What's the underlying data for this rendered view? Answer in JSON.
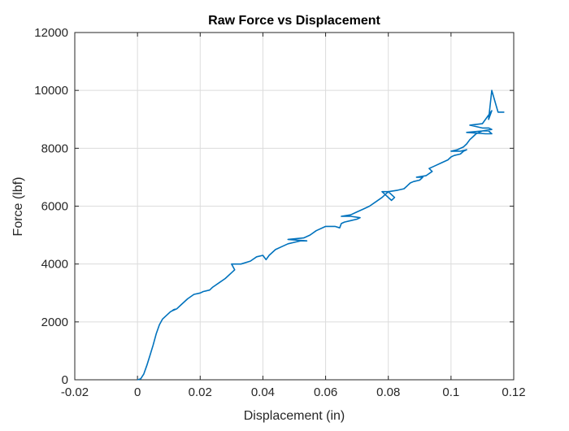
{
  "chart_data": {
    "type": "line",
    "title": "Raw Force vs Displacement",
    "xlabel": "Displacement (in)",
    "ylabel": "Force (lbf)",
    "xlim": [
      -0.02,
      0.12
    ],
    "ylim": [
      0,
      12000
    ],
    "xticks": [
      -0.02,
      0,
      0.02,
      0.04,
      0.06,
      0.08,
      0.1,
      0.12
    ],
    "xtick_labels": [
      "-0.02",
      "0",
      "0.02",
      "0.04",
      "0.06",
      "0.08",
      "0.1",
      "0.12"
    ],
    "yticks": [
      0,
      2000,
      4000,
      6000,
      8000,
      10000,
      12000
    ],
    "ytick_labels": [
      "0",
      "2000",
      "4000",
      "6000",
      "8000",
      "10000",
      "12000"
    ],
    "grid": true,
    "line_color": "#0072BD",
    "series": [
      {
        "x": [
          0.0,
          0.001,
          0.002,
          0.003,
          0.004,
          0.005,
          0.006,
          0.007,
          0.008,
          0.009,
          0.01,
          0.0105,
          0.011,
          0.0115,
          0.012,
          0.011,
          0.0125,
          0.014,
          0.016,
          0.018,
          0.02,
          0.021,
          0.023,
          0.024,
          0.026,
          0.028,
          0.03,
          0.031,
          0.03,
          0.033,
          0.036,
          0.038,
          0.04,
          0.041,
          0.042,
          0.044,
          0.046,
          0.048,
          0.05,
          0.052,
          0.054,
          0.048,
          0.053,
          0.055,
          0.057,
          0.06,
          0.063,
          0.0645,
          0.065,
          0.066,
          0.068,
          0.07,
          0.071,
          0.068,
          0.065,
          0.068,
          0.07,
          0.072,
          0.074,
          0.076,
          0.078,
          0.08,
          0.082,
          0.081,
          0.079,
          0.078,
          0.08,
          0.083,
          0.085,
          0.086,
          0.087,
          0.088,
          0.09,
          0.091,
          0.089,
          0.092,
          0.094,
          0.093,
          0.095,
          0.097,
          0.099,
          0.1,
          0.101,
          0.103,
          0.104,
          0.105,
          0.103,
          0.1,
          0.102,
          0.104,
          0.105,
          0.106,
          0.107,
          0.108,
          0.109,
          0.11,
          0.112,
          0.113,
          0.111,
          0.105,
          0.11,
          0.113,
          0.112,
          0.11,
          0.106,
          0.11,
          0.113,
          0.112,
          0.113,
          0.115,
          0.117
        ],
        "y": [
          0,
          30,
          200,
          500,
          850,
          1200,
          1600,
          1900,
          2100,
          2200,
          2300,
          2350,
          2380,
          2420,
          2440,
          2380,
          2450,
          2600,
          2800,
          2950,
          3000,
          3050,
          3100,
          3200,
          3350,
          3500,
          3700,
          3800,
          4000,
          4000,
          4100,
          4250,
          4300,
          4150,
          4300,
          4500,
          4600,
          4700,
          4750,
          4800,
          4800,
          4850,
          4900,
          5000,
          5150,
          5300,
          5300,
          5250,
          5400,
          5450,
          5500,
          5550,
          5600,
          5650,
          5650,
          5700,
          5800,
          5900,
          6000,
          6150,
          6300,
          6500,
          6300,
          6200,
          6400,
          6500,
          6500,
          6550,
          6600,
          6700,
          6800,
          6850,
          6900,
          7000,
          7000,
          7050,
          7200,
          7300,
          7400,
          7500,
          7600,
          7700,
          7750,
          7800,
          7900,
          7950,
          7900,
          7900,
          7950,
          8050,
          8150,
          8300,
          8400,
          8500,
          8550,
          8600,
          8600,
          8500,
          8500,
          8550,
          8600,
          8650,
          8700,
          8700,
          8800,
          8850,
          9300,
          9000,
          10000,
          9250,
          9250
        ]
      }
    ]
  }
}
